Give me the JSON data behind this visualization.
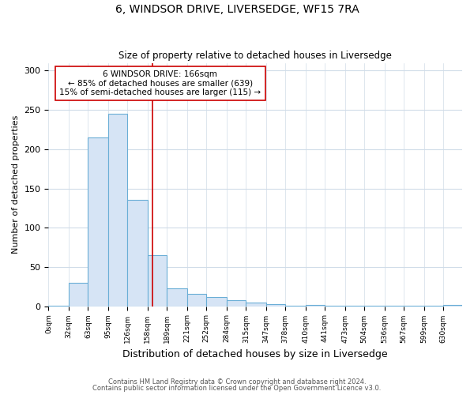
{
  "title1": "6, WINDSOR DRIVE, LIVERSEDGE, WF15 7RA",
  "title2": "Size of property relative to detached houses in Liversedge",
  "xlabel": "Distribution of detached houses by size in Liversedge",
  "ylabel": "Number of detached properties",
  "bin_labels": [
    "0sqm",
    "32sqm",
    "63sqm",
    "95sqm",
    "126sqm",
    "158sqm",
    "189sqm",
    "221sqm",
    "252sqm",
    "284sqm",
    "315sqm",
    "347sqm",
    "378sqm",
    "410sqm",
    "441sqm",
    "473sqm",
    "504sqm",
    "536sqm",
    "567sqm",
    "599sqm",
    "630sqm"
  ],
  "bin_edges": [
    0,
    32,
    63,
    95,
    126,
    158,
    189,
    221,
    252,
    284,
    315,
    347,
    378,
    410,
    441,
    473,
    504,
    536,
    567,
    599,
    630
  ],
  "values": [
    1,
    30,
    215,
    245,
    135,
    65,
    23,
    16,
    12,
    8,
    5,
    3,
    1,
    2,
    1,
    1,
    1,
    1,
    1,
    1,
    2
  ],
  "bar_color": "#d6e4f5",
  "bar_edge_color": "#6aaed6",
  "vline_x": 166,
  "vline_color": "#cc0000",
  "annotation_title": "6 WINDSOR DRIVE: 166sqm",
  "annotation_line1": "← 85% of detached houses are smaller (639)",
  "annotation_line2": "15% of semi-detached houses are larger (115) →",
  "annotation_box_color": "#ffffff",
  "annotation_border_color": "#cc0000",
  "footer1": "Contains HM Land Registry data © Crown copyright and database right 2024.",
  "footer2": "Contains public sector information licensed under the Open Government Licence v3.0.",
  "ylim": [
    0,
    310
  ],
  "yticks": [
    0,
    50,
    100,
    150,
    200,
    250,
    300
  ],
  "background_color": "#ffffff",
  "plot_background": "#ffffff",
  "grid_color": "#d0dce8"
}
